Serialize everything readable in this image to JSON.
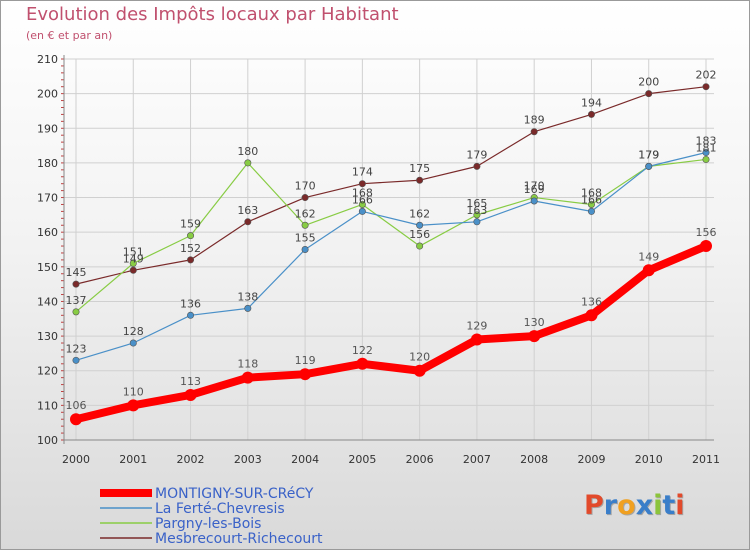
{
  "title": "Evolution des Impôts locaux par Habitant",
  "subtitle": "(en € et par an)",
  "logo": {
    "text": "Proxiti",
    "letters": [
      "P",
      "r",
      "o",
      "x",
      "i",
      "t",
      "i"
    ],
    "colors": [
      "#e24a2b",
      "#3a7ec9",
      "#f0a020",
      "#3a7ec9",
      "#8cc43c",
      "#3a7ec9",
      "#e24a2b"
    ]
  },
  "chart_data": {
    "type": "line",
    "title": "Evolution des Impôts locaux par Habitant",
    "subtitle": "(en € et par an)",
    "xlabel": "",
    "ylabel": "",
    "ylim": [
      100,
      210
    ],
    "yticks": [
      100,
      110,
      120,
      130,
      140,
      150,
      160,
      170,
      180,
      190,
      200,
      210
    ],
    "categories": [
      "2000",
      "2001",
      "2002",
      "2003",
      "2004",
      "2005",
      "2006",
      "2007",
      "2008",
      "2009",
      "2010",
      "2011"
    ],
    "grid": true,
    "legend": "bottom-left",
    "series": [
      {
        "name": "MONTIGNY-SUR-CRéCY",
        "color": "#ff0000",
        "width": 8,
        "marker": 6,
        "labelColor": "#555555",
        "values": [
          106,
          110,
          113,
          118,
          119,
          122,
          120,
          129,
          130,
          136,
          149,
          156
        ]
      },
      {
        "name": "La Ferté-Chevresis",
        "color": "#4a90c8",
        "width": 1.2,
        "marker": 3.2,
        "labelColor": "#444444",
        "values": [
          123,
          128,
          136,
          138,
          155,
          166,
          162,
          163,
          169,
          166,
          179,
          183
        ]
      },
      {
        "name": "Pargny-les-Bois",
        "color": "#88cc44",
        "width": 1.2,
        "marker": 3.2,
        "labelColor": "#444444",
        "values": [
          137,
          151,
          159,
          180,
          162,
          168,
          156,
          165,
          170,
          168,
          179,
          181
        ]
      },
      {
        "name": "Mesbrecourt-Richecourt",
        "color": "#7a2a2a",
        "width": 1.2,
        "marker": 3.2,
        "labelColor": "#444444",
        "values": [
          145,
          149,
          152,
          163,
          170,
          174,
          175,
          179,
          189,
          194,
          200,
          202
        ]
      }
    ]
  }
}
